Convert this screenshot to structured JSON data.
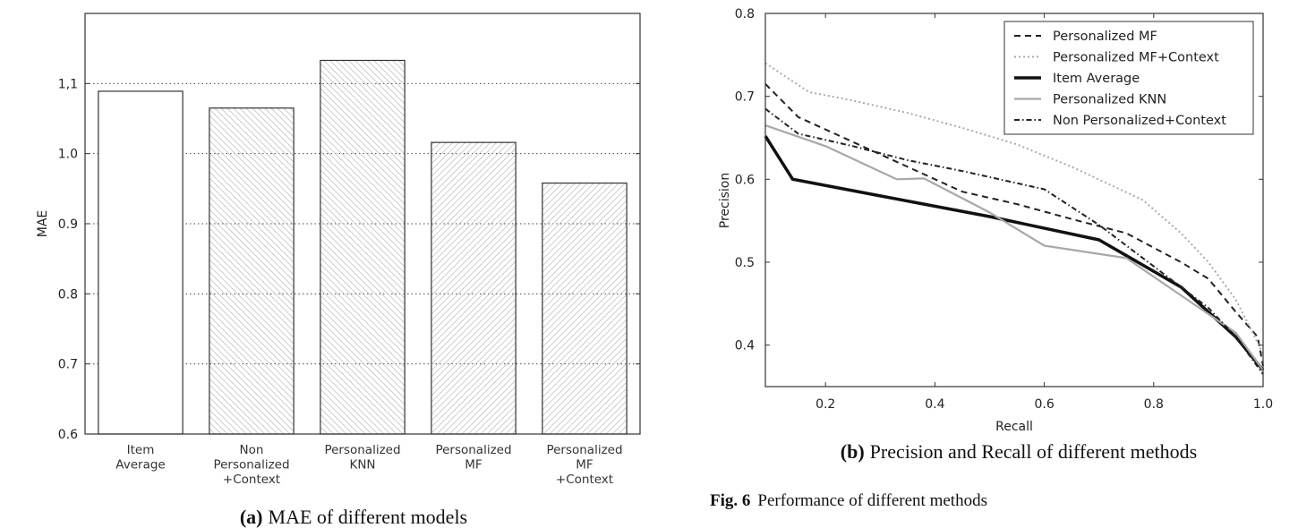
{
  "chart_data": [
    {
      "type": "bar",
      "caption_label": "(a)",
      "caption_text": "MAE of different models",
      "ylabel": "MAE",
      "xlabel": "",
      "categories": [
        [
          "Item",
          "Average"
        ],
        [
          "Non",
          "Personalized",
          "+Context"
        ],
        [
          "Personalized",
          "KNN"
        ],
        [
          "Personalized",
          "MF"
        ],
        [
          "Personalized",
          "MF",
          "+Context"
        ]
      ],
      "values": [
        1.089,
        1.065,
        1.133,
        1.016,
        0.958
      ],
      "ylim": [
        0.6,
        1.2
      ],
      "yticks": [
        "0.6",
        "0.7",
        "0.8",
        "0.9",
        "1.0",
        "1,1"
      ],
      "ytick_values": [
        0.6,
        0.7,
        0.8,
        0.9,
        1.0,
        1.1
      ],
      "grid": "horizontal-dotted"
    },
    {
      "type": "line",
      "caption_label": "(b)",
      "caption_text": "Precision and Recall of different methods",
      "xlabel": "Recall",
      "ylabel": "Precision",
      "xlim": [
        0.09,
        1.0
      ],
      "ylim": [
        0.35,
        0.8
      ],
      "xticks": [
        "0.2",
        "0.4",
        "0.6",
        "0.8",
        "1.0"
      ],
      "xtick_values": [
        0.2,
        0.4,
        0.6,
        0.8,
        1.0
      ],
      "yticks": [
        "0.4",
        "0.5",
        "0.6",
        "0.7",
        "0.8"
      ],
      "ytick_values": [
        0.4,
        0.5,
        0.6,
        0.7,
        0.8
      ],
      "legend_position": "top-right",
      "series": [
        {
          "name": "Personalized MF",
          "style": "dashed",
          "x": [
            0.09,
            0.15,
            0.25,
            0.35,
            0.45,
            0.55,
            0.65,
            0.75,
            0.85,
            0.9,
            0.95,
            0.99,
            1.0
          ],
          "y": [
            0.715,
            0.675,
            0.645,
            0.615,
            0.585,
            0.57,
            0.552,
            0.535,
            0.5,
            0.48,
            0.44,
            0.41,
            0.375
          ]
        },
        {
          "name": "Personalized MF+Context",
          "style": "dotted",
          "x": [
            0.09,
            0.17,
            0.25,
            0.35,
            0.45,
            0.55,
            0.65,
            0.78,
            0.85,
            0.9,
            0.95,
            1.0
          ],
          "y": [
            0.74,
            0.705,
            0.695,
            0.68,
            0.662,
            0.642,
            0.615,
            0.575,
            0.535,
            0.5,
            0.455,
            0.39
          ]
        },
        {
          "name": "Item Average",
          "style": "solid-thick",
          "x": [
            0.09,
            0.14,
            0.3,
            0.5,
            0.7,
            0.85,
            0.95,
            1.0
          ],
          "y": [
            0.652,
            0.6,
            0.58,
            0.555,
            0.527,
            0.47,
            0.41,
            0.37
          ]
        },
        {
          "name": "Personalized KNN",
          "style": "solid-gray",
          "x": [
            0.09,
            0.2,
            0.33,
            0.38,
            0.5,
            0.6,
            0.75,
            0.85,
            0.95,
            1.0
          ],
          "y": [
            0.665,
            0.64,
            0.6,
            0.601,
            0.56,
            0.52,
            0.505,
            0.46,
            0.415,
            0.37
          ]
        },
        {
          "name": "Non Personalized+Context",
          "style": "dashdot",
          "x": [
            0.09,
            0.15,
            0.25,
            0.35,
            0.45,
            0.6,
            0.7,
            0.8,
            0.9,
            0.95,
            1.0
          ],
          "y": [
            0.685,
            0.655,
            0.64,
            0.623,
            0.61,
            0.588,
            0.545,
            0.495,
            0.445,
            0.41,
            0.365
          ]
        }
      ]
    }
  ],
  "figure_caption": {
    "label": "Fig. 6",
    "text": "Performance of different methods"
  }
}
